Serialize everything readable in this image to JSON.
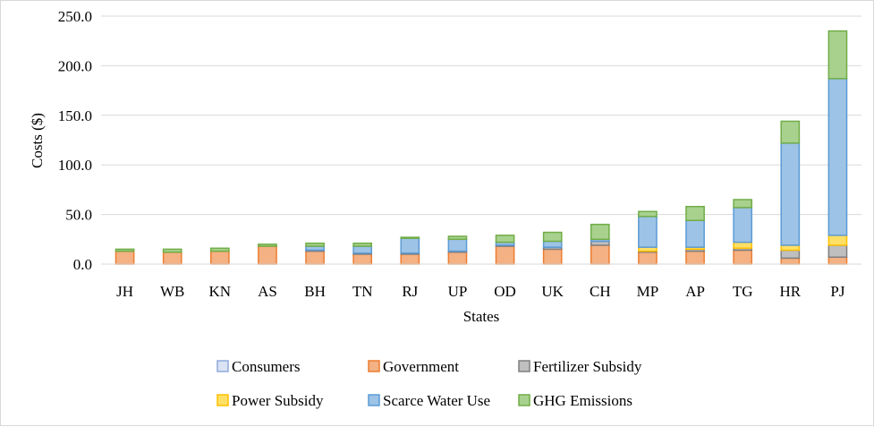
{
  "chart_data": {
    "type": "bar",
    "stacked": true,
    "title": "",
    "xlabel": "States",
    "ylabel": "Costs ($)",
    "ylim": [
      0,
      250
    ],
    "yticks": [
      "0.0",
      "50.0",
      "100.0",
      "150.0",
      "200.0",
      "250.0"
    ],
    "ytick_values": [
      0,
      50,
      100,
      150,
      200,
      250
    ],
    "grid": true,
    "legend_position": "bottom",
    "categories": [
      "JH",
      "WB",
      "KN",
      "AS",
      "BH",
      "TN",
      "RJ",
      "UP",
      "OD",
      "UK",
      "CH",
      "MP",
      "AP",
      "TG",
      "HR",
      "PJ"
    ],
    "series": [
      {
        "name": "Consumers",
        "fill": "#dae3f3",
        "stroke": "#8faadc",
        "values": [
          0,
          0,
          0,
          0,
          0,
          0,
          0,
          0,
          0,
          0,
          0,
          0,
          0,
          0,
          0,
          0
        ]
      },
      {
        "name": "Government",
        "fill": "#f4b183",
        "stroke": "#ed7d31",
        "values": [
          13,
          12,
          13,
          18,
          13,
          10,
          10,
          12,
          18,
          15,
          19,
          12,
          13,
          14,
          6,
          7
        ]
      },
      {
        "name": "Fertilizer Subsidy",
        "fill": "#bfbfbf",
        "stroke": "#7f7f7f",
        "values": [
          0,
          0,
          0,
          0,
          1,
          1,
          1,
          1,
          1,
          2,
          4,
          1,
          2,
          2,
          8,
          12
        ]
      },
      {
        "name": "Power Subsidy",
        "fill": "#ffe066",
        "stroke": "#ffc000",
        "values": [
          0,
          0,
          0,
          0,
          0,
          0,
          0,
          0,
          0,
          0,
          0,
          4,
          2,
          6,
          5,
          10
        ]
      },
      {
        "name": "Scarce Water Use",
        "fill": "#9dc3e6",
        "stroke": "#5b9bd5",
        "values": [
          0,
          0,
          0,
          0,
          4,
          7,
          15,
          12,
          3,
          6,
          2,
          31,
          27,
          35,
          103,
          158
        ]
      },
      {
        "name": "GHG Emissions",
        "fill": "#a9d18e",
        "stroke": "#70ad47",
        "values": [
          2,
          3,
          3,
          2,
          3,
          3,
          1,
          3,
          7,
          9,
          15,
          5,
          14,
          8,
          22,
          48
        ]
      }
    ]
  }
}
